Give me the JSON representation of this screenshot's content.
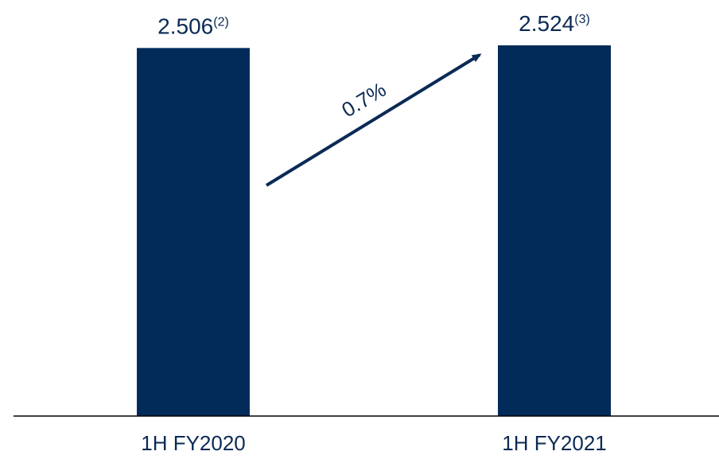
{
  "chart_data": {
    "type": "bar",
    "categories": [
      "1H FY2020",
      "1H FY2021"
    ],
    "values": [
      2.506,
      2.524
    ],
    "value_labels": [
      "2.506",
      "2.524"
    ],
    "footnotes": [
      "(2)",
      "(3)"
    ],
    "growth_label": "0.7%",
    "title": "",
    "xlabel": "",
    "ylabel": "",
    "ylim": [
      0,
      2.524
    ],
    "grid": false,
    "legend": "none",
    "bar_color": "#032b5a",
    "axis_color": "#000000",
    "arrow_color": "#0b2a55"
  }
}
